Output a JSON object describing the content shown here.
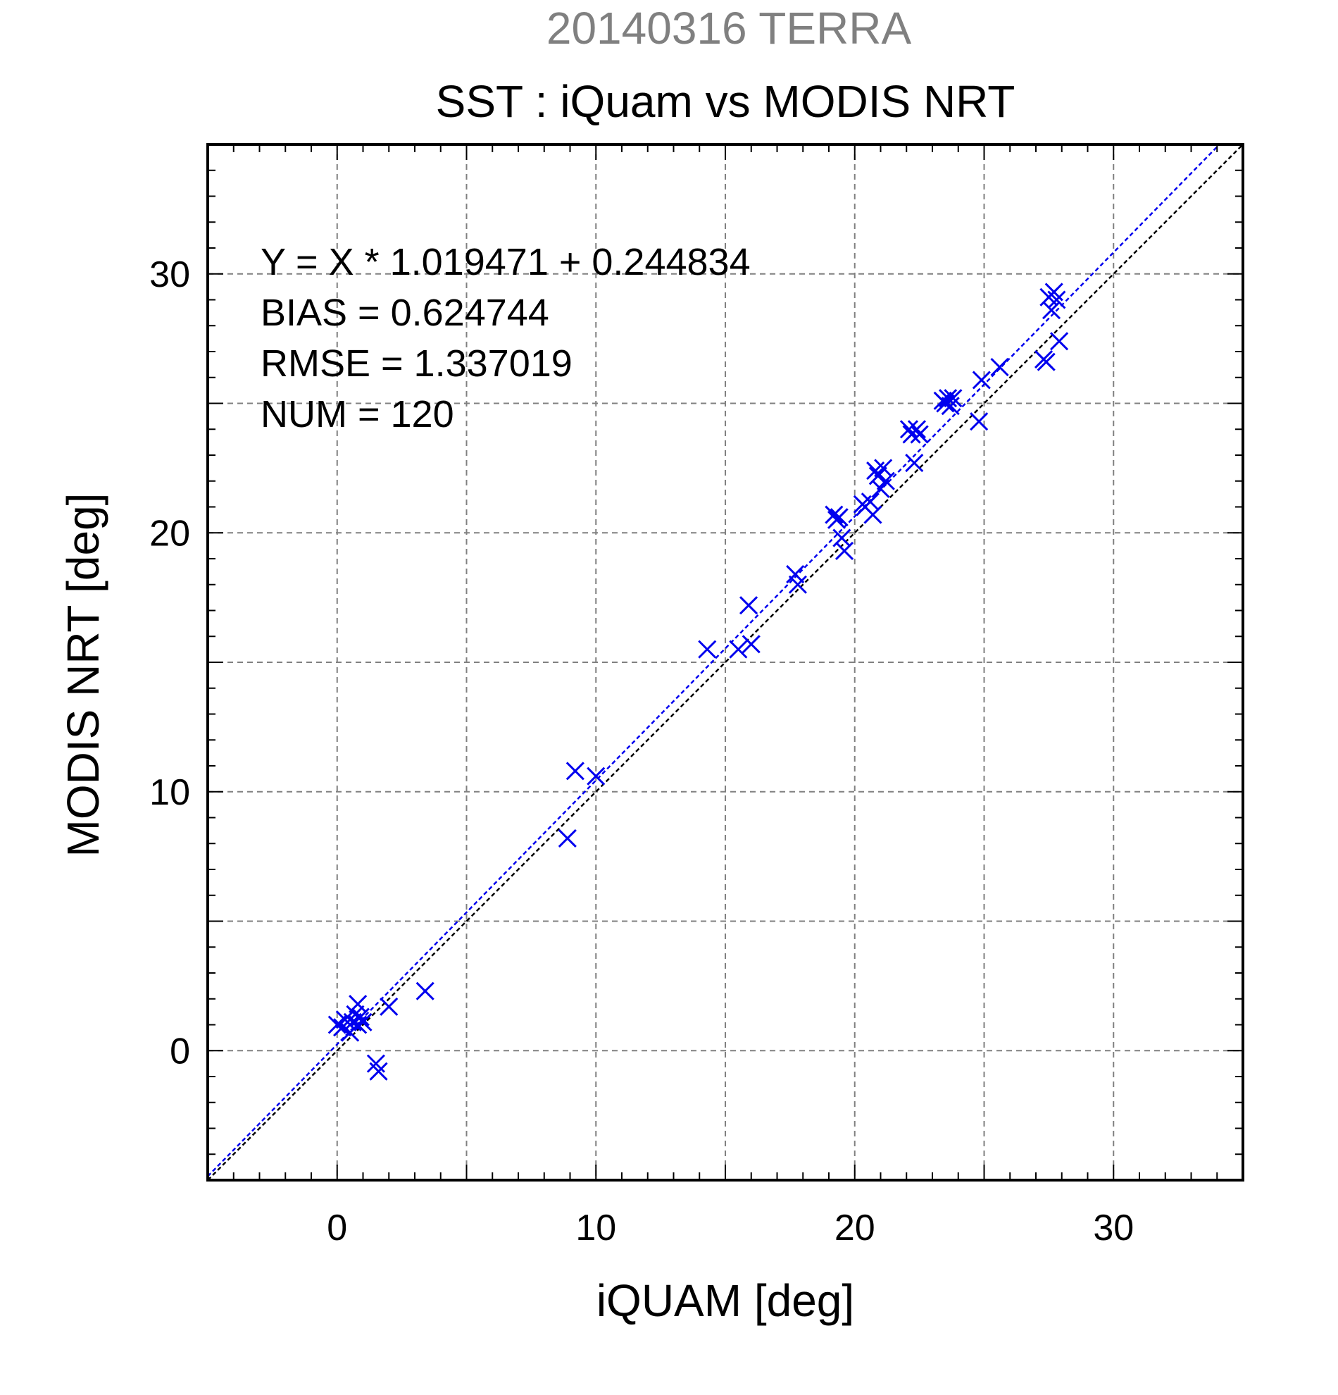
{
  "chart_data": {
    "type": "scatter",
    "subtitle": "20140316 TERRA",
    "title": "SST : iQuam vs MODIS NRT",
    "xlabel": "iQUAM [deg]",
    "ylabel": "MODIS NRT [deg]",
    "xlim": [
      -5,
      35
    ],
    "ylim": [
      -5,
      35
    ],
    "xticks": [
      0,
      10,
      20,
      30
    ],
    "yticks": [
      0,
      10,
      20,
      30
    ],
    "grid": true,
    "stats": [
      "Y = X * 1.019471 + 0.244834",
      "BIAS = 0.624744",
      "RMSE = 1.337019",
      "NUM = 120"
    ],
    "fit": {
      "slope": 1.019471,
      "intercept": 0.244834
    },
    "series": [
      {
        "points": [
          [
            0.0,
            1.0
          ],
          [
            0.2,
            0.9
          ],
          [
            0.3,
            1.2
          ],
          [
            0.5,
            0.7
          ],
          [
            0.6,
            1.1
          ],
          [
            0.7,
            1.4
          ],
          [
            0.8,
            1.8
          ],
          [
            0.8,
            1.0
          ],
          [
            0.9,
            1.3
          ],
          [
            1.0,
            1.1
          ],
          [
            1.5,
            -0.5
          ],
          [
            1.6,
            -0.8
          ],
          [
            2.0,
            1.7
          ],
          [
            3.4,
            2.3
          ],
          [
            8.9,
            8.2
          ],
          [
            9.2,
            10.8
          ],
          [
            10.0,
            10.6
          ],
          [
            14.3,
            15.5
          ],
          [
            15.5,
            15.5
          ],
          [
            15.9,
            17.2
          ],
          [
            16.0,
            15.7
          ],
          [
            17.7,
            18.4
          ],
          [
            17.8,
            18.0
          ],
          [
            19.2,
            20.7
          ],
          [
            19.3,
            20.5
          ],
          [
            19.4,
            20.6
          ],
          [
            19.5,
            19.8
          ],
          [
            19.6,
            19.3
          ],
          [
            20.3,
            21.1
          ],
          [
            20.4,
            21.0
          ],
          [
            20.6,
            21.2
          ],
          [
            20.7,
            20.7
          ],
          [
            20.8,
            22.4
          ],
          [
            20.9,
            22.2
          ],
          [
            21.0,
            21.7
          ],
          [
            21.1,
            22.5
          ],
          [
            21.2,
            22.0
          ],
          [
            22.1,
            24.0
          ],
          [
            22.2,
            23.8
          ],
          [
            22.3,
            22.7
          ],
          [
            22.4,
            24.0
          ],
          [
            22.5,
            23.8
          ],
          [
            23.4,
            25.1
          ],
          [
            23.5,
            25.0
          ],
          [
            23.6,
            25.2
          ],
          [
            23.7,
            24.9
          ],
          [
            23.8,
            25.2
          ],
          [
            24.8,
            24.3
          ],
          [
            24.9,
            25.9
          ],
          [
            25.6,
            26.4
          ],
          [
            27.3,
            26.7
          ],
          [
            27.4,
            26.6
          ],
          [
            27.5,
            29.1
          ],
          [
            27.6,
            28.6
          ],
          [
            27.7,
            29.3
          ],
          [
            27.8,
            29.0
          ],
          [
            27.9,
            27.4
          ]
        ]
      }
    ]
  }
}
